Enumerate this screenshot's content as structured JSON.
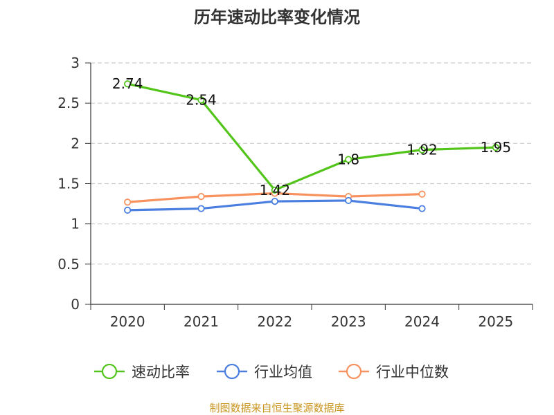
{
  "chart_data": {
    "type": "line",
    "title": "历年速动比率变化情况",
    "categories": [
      "2020",
      "2021",
      "2022",
      "2023",
      "2024",
      "2025"
    ],
    "y_ticks": [
      "0",
      "0.5",
      "1",
      "1.5",
      "2",
      "2.5",
      "3"
    ],
    "ylim": [
      0,
      3
    ],
    "grid": true,
    "legend_position": "bottom",
    "series": [
      {
        "name": "速动比率",
        "color": "#52c41a",
        "values": [
          2.74,
          2.54,
          1.42,
          1.8,
          1.92,
          1.95
        ],
        "data_labels": [
          "2.74",
          "2.54",
          "1.42",
          "1.8",
          "1.92",
          "1.95"
        ]
      },
      {
        "name": "行业均值",
        "color": "#4a7fe0",
        "values": [
          1.17,
          1.19,
          1.28,
          1.29,
          1.19,
          null
        ]
      },
      {
        "name": "行业中位数",
        "color": "#f7925e",
        "values": [
          1.27,
          1.34,
          1.38,
          1.34,
          1.37,
          null
        ]
      }
    ],
    "source": "制图数据来自恒生聚源数据库"
  }
}
